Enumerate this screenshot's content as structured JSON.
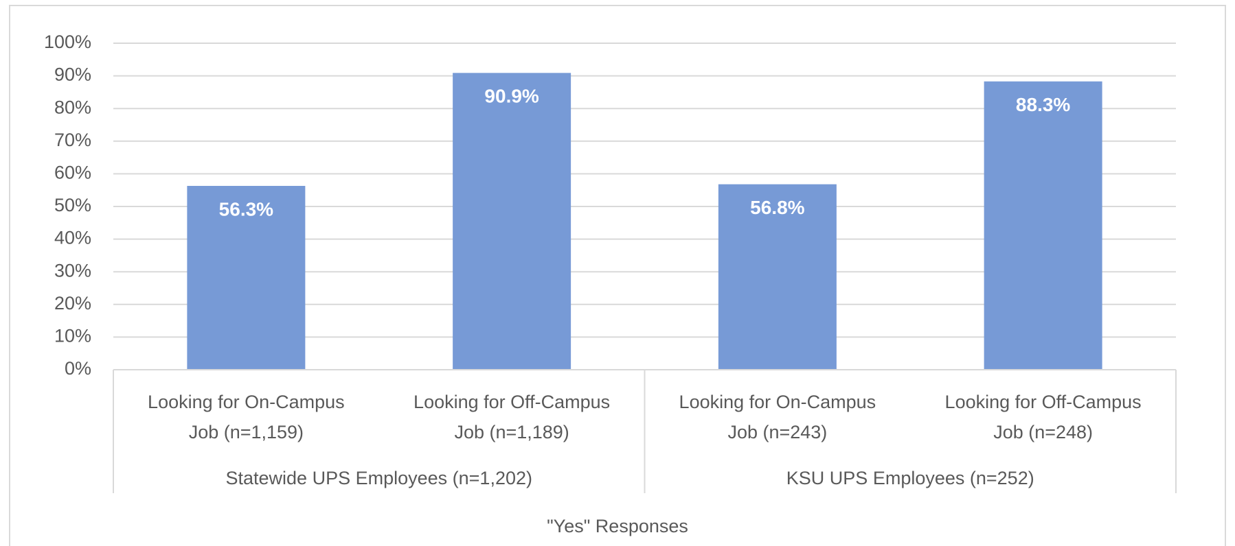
{
  "chart_data": {
    "type": "bar",
    "groups": [
      {
        "name": "Statewide UPS Employees (n=1,202)",
        "categories": [
          "Looking for On-Campus Job (n=1,159)",
          "Looking for Off-Campus Job (n=1,189)"
        ],
        "values": [
          56.3,
          90.9
        ],
        "value_labels": [
          "56.3%",
          "90.9%"
        ]
      },
      {
        "name": "KSU UPS Employees (n=252)",
        "categories": [
          "Looking for On-Campus Job (n=243)",
          "Looking for Off-Campus Job (n=248)"
        ],
        "values": [
          56.8,
          88.3
        ],
        "value_labels": [
          "56.8%",
          "88.3%"
        ]
      }
    ],
    "xlabel": "\"Yes\" Responses",
    "color": "#779ad6",
    "ylim": [
      0,
      100
    ],
    "yticks": [
      {
        "value": 0,
        "label": "0%"
      },
      {
        "value": 10,
        "label": "10%"
      },
      {
        "value": 20,
        "label": "20%"
      },
      {
        "value": 30,
        "label": "30%"
      },
      {
        "value": 40,
        "label": "40%"
      },
      {
        "value": 50,
        "label": "50%"
      },
      {
        "value": 60,
        "label": "60%"
      },
      {
        "value": 70,
        "label": "70%"
      },
      {
        "value": 80,
        "label": "80%"
      },
      {
        "value": 90,
        "label": "90%"
      },
      {
        "value": 100,
        "label": "100%"
      }
    ],
    "grid": true
  }
}
